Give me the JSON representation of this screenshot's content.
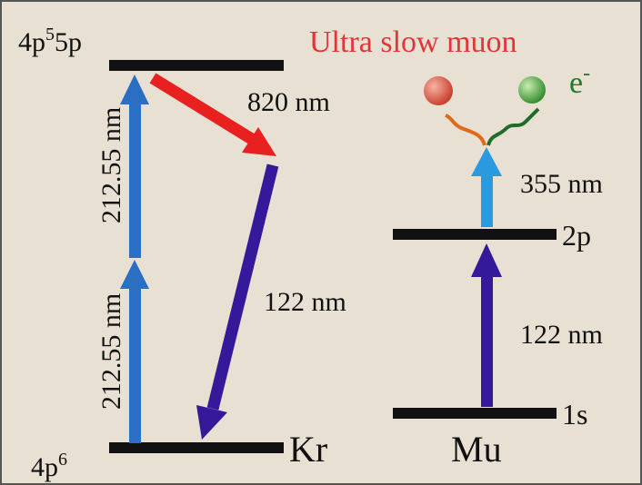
{
  "title": [
    "Ultra slow muon"
  ],
  "krypton": {
    "upper_level": [
      "4p",
      "5",
      "5p"
    ],
    "lower_level": [
      "4p",
      "6"
    ],
    "label": "Kr",
    "excitation_1": "212.55 nm",
    "excitation_2": "212.55 nm",
    "transition_1": "820 nm",
    "transition_2": "122 nm"
  },
  "muonium": {
    "label": "Mu",
    "ground_level": "1s",
    "excited_level": "2p",
    "excitation": "122 nm",
    "ionization": "355 nm",
    "electron": [
      "e",
      "-"
    ]
  }
}
